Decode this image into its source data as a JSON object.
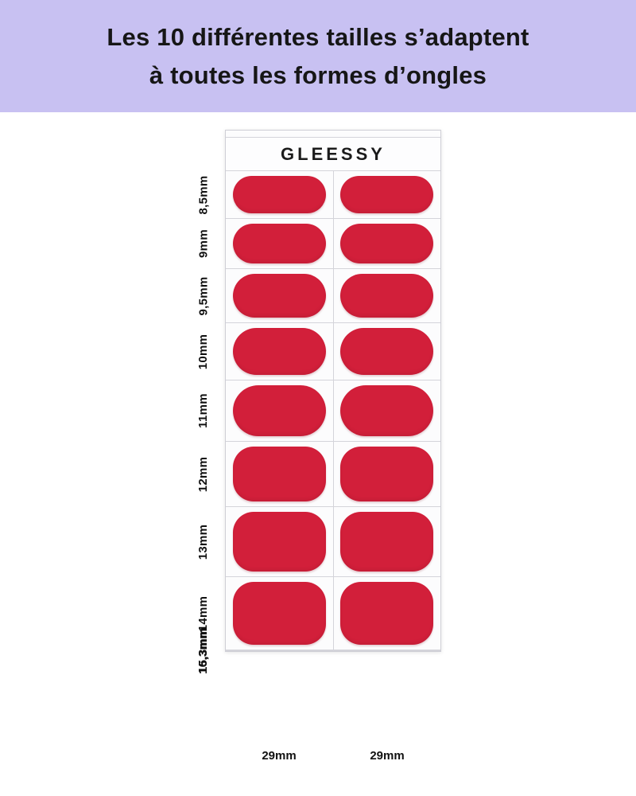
{
  "banner": {
    "line1": "Les 10 différentes tailles s’adaptent",
    "line2": "à toutes les formes d’ongles"
  },
  "sheet": {
    "brand": "GLEESSY",
    "rows": [
      {
        "label": "8,5mm",
        "size_mm": 8.5
      },
      {
        "label": "9mm",
        "size_mm": 9
      },
      {
        "label": "9,5mm",
        "size_mm": 9.5
      },
      {
        "label": "10mm",
        "size_mm": 10
      },
      {
        "label": "11mm",
        "size_mm": 11
      },
      {
        "label": "12mm",
        "size_mm": 12
      },
      {
        "label": "13mm",
        "size_mm": 13
      },
      {
        "label": "14mm",
        "size_mm": 14
      },
      {
        "label": "15,3mm",
        "size_mm": 15.3
      },
      {
        "label": "16,3mm",
        "size_mm": 16.3
      }
    ],
    "bottom_labels": [
      "29mm",
      "29mm"
    ],
    "sticker_length_mm": 29,
    "row_count": 10,
    "columns": 2
  },
  "colors": {
    "banner-bg": "#c8c1f2",
    "text-dark": "#161616",
    "sticker-red": "#d21f3a",
    "sheet-line": "#d4d4da",
    "sheet-bg": "#fafafb"
  }
}
